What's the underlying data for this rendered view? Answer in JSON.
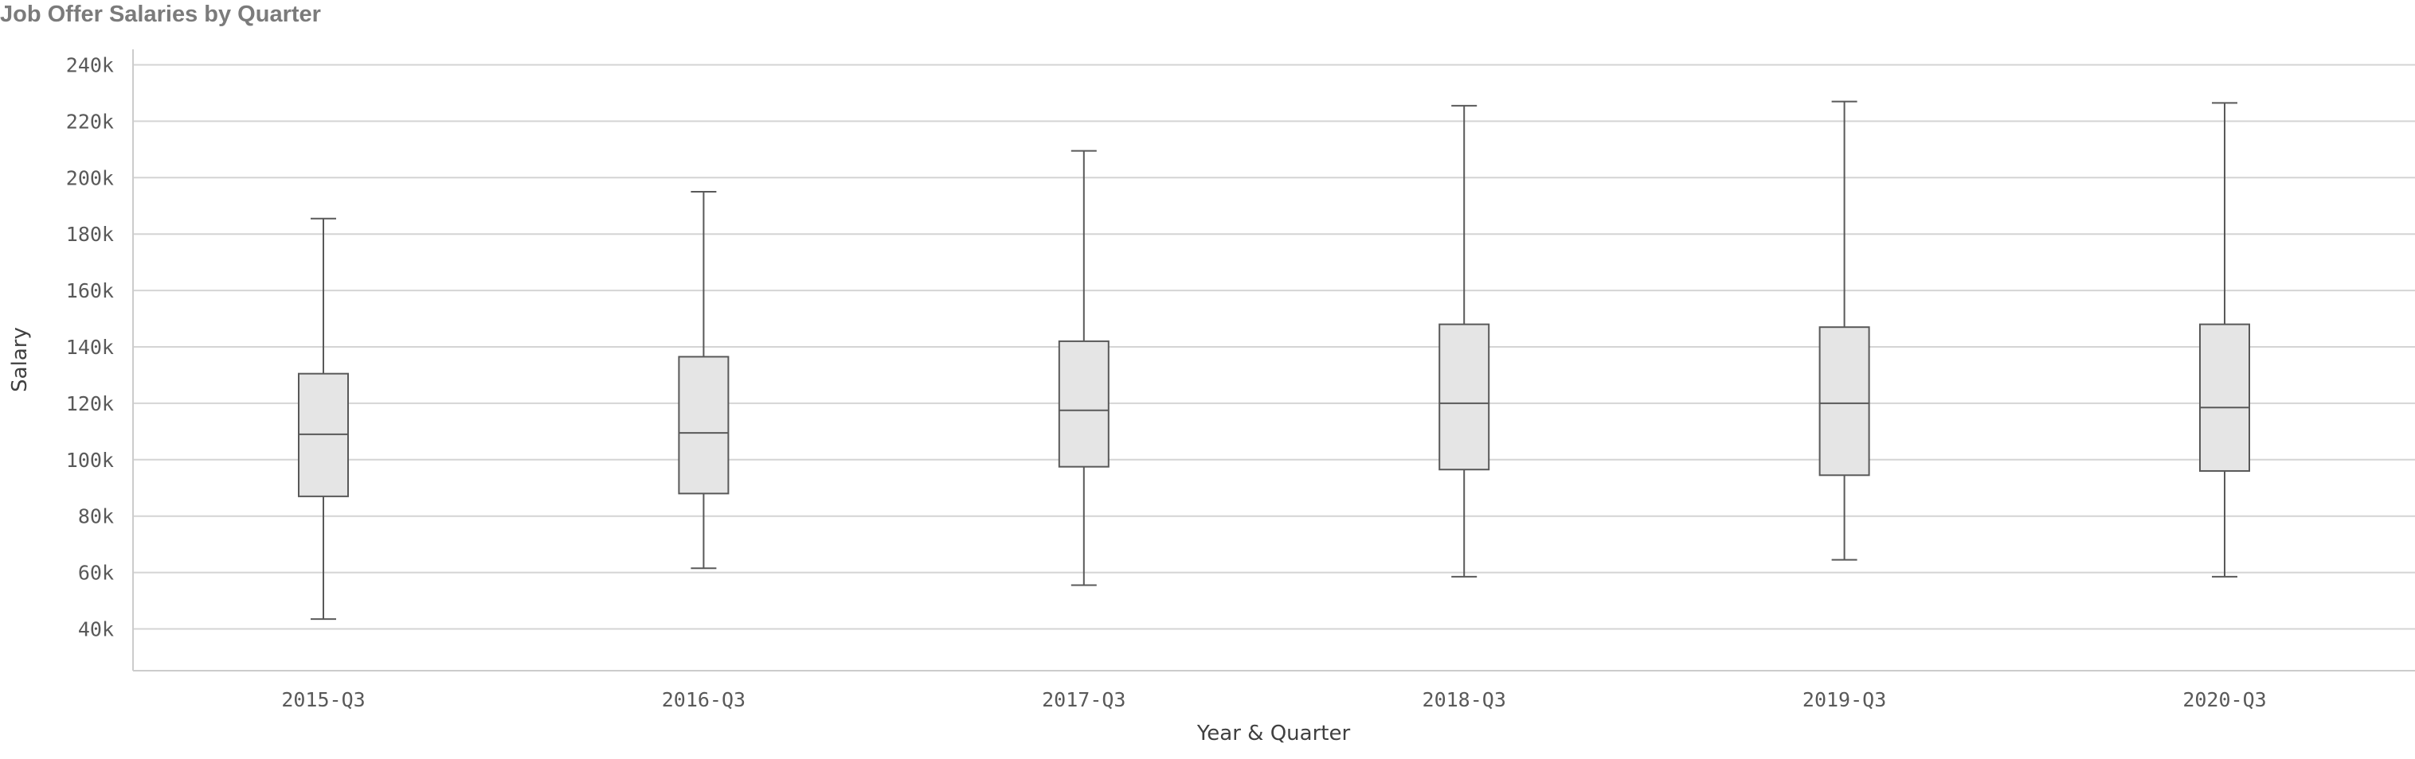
{
  "title": "Job Offer Salaries by Quarter",
  "chart_data": {
    "type": "boxplot",
    "xlabel": "Year & Quarter",
    "ylabel": "Salary",
    "ylim": [
      25000,
      245000
    ],
    "yticks": [
      40000,
      60000,
      80000,
      100000,
      120000,
      140000,
      160000,
      180000,
      200000,
      220000,
      240000
    ],
    "ytick_labels": [
      "40k",
      "60k",
      "80k",
      "100k",
      "120k",
      "140k",
      "160k",
      "180k",
      "200k",
      "220k",
      "240k"
    ],
    "grid": true,
    "categories": [
      "2015-Q3",
      "2016-Q3",
      "2017-Q3",
      "2018-Q3",
      "2019-Q3",
      "2020-Q3"
    ],
    "boxes": [
      {
        "min": 43500,
        "q1": 87000,
        "median": 109000,
        "q3": 130500,
        "max": 185500
      },
      {
        "min": 61500,
        "q1": 88000,
        "median": 109500,
        "q3": 136500,
        "max": 195000
      },
      {
        "min": 55500,
        "q1": 97500,
        "median": 117500,
        "q3": 142000,
        "max": 209500
      },
      {
        "min": 58500,
        "q1": 96500,
        "median": 120000,
        "q3": 148000,
        "max": 225500
      },
      {
        "min": 64500,
        "q1": 94500,
        "median": 120000,
        "q3": 147000,
        "max": 227000
      },
      {
        "min": 58500,
        "q1": 96000,
        "median": 118500,
        "q3": 148000,
        "max": 226500
      }
    ],
    "colors": {
      "box_fill": "#e5e5e5",
      "box_stroke": "#595959",
      "grid": "#d4d4d4",
      "axis": "#cccccc"
    }
  }
}
